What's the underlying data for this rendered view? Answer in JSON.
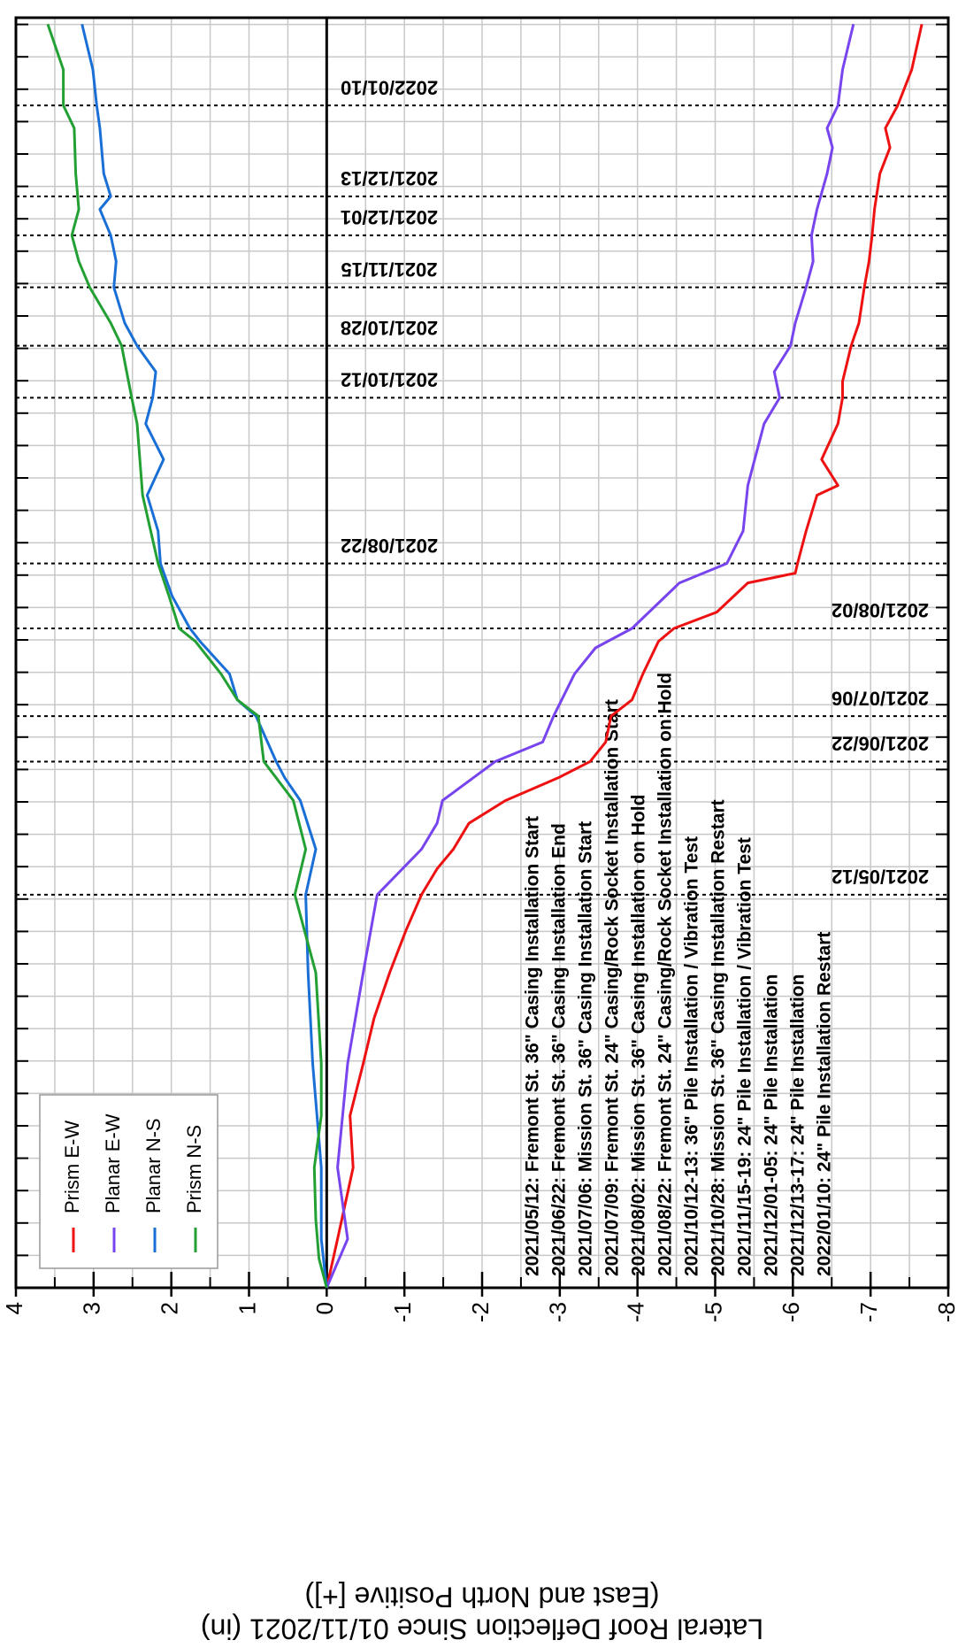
{
  "chart_data": {
    "type": "line",
    "ylabel": "Lateral Roof Deflection Since 01/11/2021 (in)",
    "ylabel2": "(East and North Positive [+])",
    "xlim": [
      "2021/01/11",
      "2022/02/06"
    ],
    "ylim": [
      -8,
      4
    ],
    "yticks": [
      -8,
      -7,
      -6,
      -5,
      -4,
      -3,
      -2,
      -1,
      0,
      1,
      2,
      3,
      4
    ],
    "grid": true,
    "legend": "upper left",
    "events": [
      "2021/05/12",
      "2021/06/22",
      "2021/07/06",
      "2021/08/02",
      "2021/08/22",
      "2021/10/12",
      "2021/10/28",
      "2021/11/15",
      "2021/12/01",
      "2021/12/13",
      "2022/01/10"
    ],
    "annotations": [
      "2021/05/12: Fremont St. 36\" Casing Installation Start",
      "2021/06/22: Fremont St. 36\" Casing Installation End",
      "2021/07/06: Mission St. 36\" Casing Installation Start",
      "2021/07/09: Fremont St. 24\" Casing/Rock Socket Installation Start",
      "2021/08/02: Mission St. 36\" Casing Installation on Hold",
      "2021/08/22: Fremont St. 24\" Casing/Rock Socket Installation on Hold",
      "2021/10/12-13: 36\" Pile Installation / Vibration Test",
      "2021/10/28: Mission St. 36\" Casing Installation Restart",
      "2021/11/15-19: 24\" Pile Installation / Vibration Test",
      "2021/12/01-05: 24\" Pile Installation",
      "2021/12/13-17: 24\" Pile Installation",
      "2022/01/10: 24\" Pile Installation Restart"
    ],
    "series": [
      {
        "name": "Prism E-W",
        "color": "#ee1111",
        "x": [
          "2021/01/11",
          "2021/01/26",
          "2021/02/17",
          "2021/03/05",
          "2021/03/21",
          "2021/04/04",
          "2021/04/18",
          "2021/05/01",
          "2021/05/12",
          "2021/05/20",
          "2021/05/26",
          "2021/06/03",
          "2021/06/10",
          "2021/06/17",
          "2021/06/22",
          "2021/06/28",
          "2021/07/06",
          "2021/07/11",
          "2021/07/19",
          "2021/07/29",
          "2021/08/02",
          "2021/08/07",
          "2021/08/16",
          "2021/08/19",
          "2021/08/22",
          "2021/09/01",
          "2021/09/12",
          "2021/09/15",
          "2021/09/23",
          "2021/10/04",
          "2021/10/12",
          "2021/10/17",
          "2021/10/28",
          "2021/11/04",
          "2021/11/15",
          "2021/11/23",
          "2021/12/01",
          "2021/12/09",
          "2021/12/20",
          "2021/12/28",
          "2022/01/03",
          "2022/01/10",
          "2022/01/21",
          "2022/02/04"
        ],
        "values": [
          0,
          -0.14,
          -0.34,
          -0.3,
          -0.47,
          -0.61,
          -0.81,
          -1.02,
          -1.22,
          -1.42,
          -1.63,
          -1.83,
          -2.3,
          -2.98,
          -3.39,
          -3.59,
          -3.66,
          -3.93,
          -4.07,
          -4.27,
          -4.47,
          -5.02,
          -5.42,
          -6.03,
          -6.06,
          -6.17,
          -6.31,
          -6.58,
          -6.37,
          -6.58,
          -6.64,
          -6.64,
          -6.75,
          -6.85,
          -6.92,
          -6.98,
          -7.02,
          -7.05,
          -7.12,
          -7.25,
          -7.19,
          -7.35,
          -7.53,
          -7.66
        ]
      },
      {
        "name": "Planar E-W",
        "color": "#7744ee",
        "x": [
          "2021/01/11",
          "2021/01/26",
          "2021/02/17",
          "2021/03/21",
          "2021/04/18",
          "2021/05/12",
          "2021/05/26",
          "2021/06/03",
          "2021/06/10",
          "2021/06/22",
          "2021/06/28",
          "2021/07/06",
          "2021/07/19",
          "2021/07/27",
          "2021/08/02",
          "2021/08/16",
          "2021/08/22",
          "2021/09/01",
          "2021/09/15",
          "2021/10/04",
          "2021/10/12",
          "2021/10/20",
          "2021/10/28",
          "2021/11/04",
          "2021/11/15",
          "2021/11/23",
          "2021/12/01",
          "2021/12/09",
          "2021/12/20",
          "2021/12/28",
          "2022/01/03",
          "2022/01/10",
          "2022/01/21",
          "2022/02/04"
        ],
        "values": [
          0,
          -0.27,
          -0.14,
          -0.27,
          -0.47,
          -0.65,
          -1.22,
          -1.42,
          -1.49,
          -2.17,
          -2.78,
          -2.92,
          -3.19,
          -3.46,
          -3.93,
          -4.54,
          -5.15,
          -5.36,
          -5.42,
          -5.63,
          -5.83,
          -5.76,
          -5.97,
          -6.03,
          -6.17,
          -6.26,
          -6.24,
          -6.31,
          -6.44,
          -6.51,
          -6.44,
          -6.58,
          -6.64,
          -6.78
        ]
      },
      {
        "name": "Planar N-S",
        "color": "#1a6fd6",
        "x": [
          "2021/01/11",
          "2021/01/26",
          "2021/02/17",
          "2021/03/21",
          "2021/04/18",
          "2021/05/12",
          "2021/05/26",
          "2021/06/10",
          "2021/06/17",
          "2021/06/22",
          "2021/07/06",
          "2021/07/11",
          "2021/07/19",
          "2021/07/29",
          "2021/08/02",
          "2021/08/12",
          "2021/08/22",
          "2021/09/01",
          "2021/09/12",
          "2021/09/23",
          "2021/10/04",
          "2021/10/12",
          "2021/10/20",
          "2021/10/28",
          "2021/11/04",
          "2021/11/15",
          "2021/11/23",
          "2021/12/01",
          "2021/12/09",
          "2021/12/13",
          "2021/12/20",
          "2022/01/03",
          "2022/01/10",
          "2022/01/21",
          "2022/02/04"
        ],
        "values": [
          0,
          0.07,
          0.07,
          0.18,
          0.24,
          0.27,
          0.14,
          0.34,
          0.54,
          0.65,
          0.91,
          1.15,
          1.25,
          1.63,
          1.76,
          1.99,
          2.14,
          2.17,
          2.31,
          2.1,
          2.33,
          2.24,
          2.2,
          2.44,
          2.6,
          2.74,
          2.71,
          2.78,
          2.92,
          2.78,
          2.87,
          2.92,
          2.96,
          3.01,
          3.15
        ]
      },
      {
        "name": "Prism N-S",
        "color": "#22a033",
        "x": [
          "2021/01/11",
          "2021/01/20",
          "2021/02/01",
          "2021/02/17",
          "2021/03/05",
          "2021/03/21",
          "2021/04/18",
          "2021/05/12",
          "2021/05/26",
          "2021/06/10",
          "2021/06/17",
          "2021/06/22",
          "2021/07/06",
          "2021/07/11",
          "2021/07/19",
          "2021/07/29",
          "2021/08/02",
          "2021/08/12",
          "2021/08/22",
          "2021/09/12",
          "2021/10/04",
          "2021/10/12",
          "2021/10/28",
          "2021/11/04",
          "2021/11/15",
          "2021/11/23",
          "2021/12/01",
          "2021/12/09",
          "2021/12/20",
          "2022/01/03",
          "2022/01/10",
          "2022/01/21",
          "2022/02/04"
        ],
        "values": [
          0,
          0.1,
          0.14,
          0.16,
          0.07,
          0.07,
          0.14,
          0.41,
          0.27,
          0.43,
          0.65,
          0.81,
          0.88,
          1.15,
          1.36,
          1.69,
          1.9,
          2.03,
          2.17,
          2.37,
          2.44,
          2.51,
          2.64,
          2.78,
          3.05,
          3.19,
          3.28,
          3.19,
          3.23,
          3.25,
          3.39,
          3.39,
          3.59
        ]
      }
    ]
  }
}
